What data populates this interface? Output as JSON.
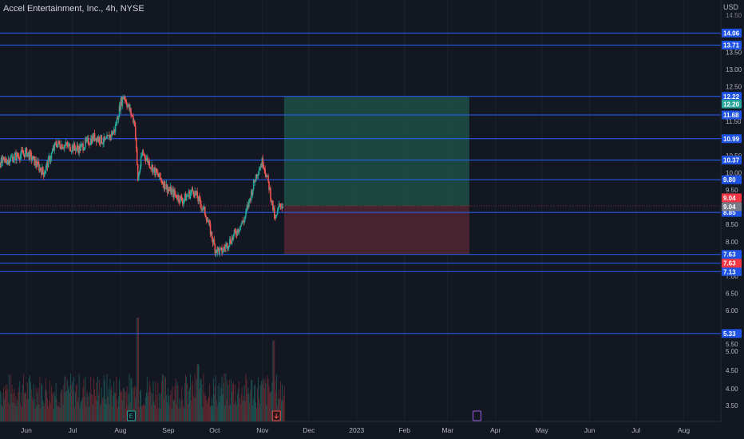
{
  "header": {
    "symbol_title": "Accel Entertainment, Inc., 4h, NYSE",
    "currency": "USD"
  },
  "colors": {
    "background": "#131722",
    "up_candle": "#26a69a",
    "down_candle": "#ef5350",
    "level_line": "#2962ff",
    "level_label_bg": "#1e53e5",
    "profit_zone": "#1c4a43",
    "loss_zone": "#4a2430",
    "price_tag_teal": "#26a69a",
    "price_tag_red": "#f23645",
    "price_tag_gray": "#787b86"
  },
  "chart_data": {
    "type": "candlestick",
    "title": "Accel Entertainment, Inc., 4h, NYSE",
    "ylabel": "USD",
    "ylim": [
      3.2,
      14.6
    ],
    "y_ticks": [
      "14.50",
      "13.50",
      "13.00",
      "12.50",
      "12.00",
      "11.50",
      "11.00",
      "10.50",
      "10.00",
      "9.50",
      "9.00",
      "8.50",
      "8.00",
      "7.50",
      "7.00",
      "6.50",
      "6.00",
      "5.50",
      "5.00",
      "4.50",
      "4.00",
      "3.50"
    ],
    "x_ticks": [
      "Jun",
      "Jul",
      "Aug",
      "Sep",
      "Oct",
      "Nov",
      "Dec",
      "2023",
      "Feb",
      "Mar",
      "Apr",
      "May",
      "Jun",
      "Jul",
      "Aug"
    ],
    "x_tick_dates": [
      "2022-06-01",
      "2022-07-01",
      "2022-08-01",
      "2022-09-01",
      "2022-10-01",
      "2022-11-01",
      "2022-12-01",
      "2023-01-01",
      "2023-02-01",
      "2023-03-01",
      "2023-04-01",
      "2023-05-01",
      "2023-06-01",
      "2023-07-01",
      "2023-08-01"
    ],
    "horizontal_levels": [
      "14.06",
      "13.71",
      "12.22",
      "11.68",
      "10.99",
      "10.37",
      "9.80",
      "8.85",
      "7.63",
      "7.37",
      "7.13",
      "5.33"
    ],
    "current_price_tags": [
      "12.20",
      "9.04",
      "9.04",
      "7.63"
    ],
    "last_price": 9.04,
    "position_tool": {
      "entry": 9.04,
      "target": 12.22,
      "stop": 7.63,
      "start_date": "2022-11-15",
      "end_date": "2023-03-15"
    },
    "markers": [
      "E",
      "E"
    ],
    "price_path": [
      {
        "date": "2022-05-15",
        "price": 10.3
      },
      {
        "date": "2022-06-01",
        "price": 10.6
      },
      {
        "date": "2022-06-12",
        "price": 10.0
      },
      {
        "date": "2022-06-20",
        "price": 10.85
      },
      {
        "date": "2022-07-05",
        "price": 10.7
      },
      {
        "date": "2022-07-15",
        "price": 11.05
      },
      {
        "date": "2022-07-22",
        "price": 10.9
      },
      {
        "date": "2022-07-28",
        "price": 11.25
      },
      {
        "date": "2022-08-01",
        "price": 12.05
      },
      {
        "date": "2022-08-03",
        "price": 12.25
      },
      {
        "date": "2022-08-06",
        "price": 11.9
      },
      {
        "date": "2022-08-10",
        "price": 11.45
      },
      {
        "date": "2022-08-12",
        "price": 9.8
      },
      {
        "date": "2022-08-15",
        "price": 10.6
      },
      {
        "date": "2022-08-22",
        "price": 10.1
      },
      {
        "date": "2022-09-01",
        "price": 9.5
      },
      {
        "date": "2022-09-10",
        "price": 9.2
      },
      {
        "date": "2022-09-17",
        "price": 9.5
      },
      {
        "date": "2022-09-25",
        "price": 8.8
      },
      {
        "date": "2022-10-01",
        "price": 7.8
      },
      {
        "date": "2022-10-05",
        "price": 7.7
      },
      {
        "date": "2022-10-12",
        "price": 8.1
      },
      {
        "date": "2022-10-20",
        "price": 8.65
      },
      {
        "date": "2022-10-28",
        "price": 10.0
      },
      {
        "date": "2022-11-01",
        "price": 10.35
      },
      {
        "date": "2022-11-05",
        "price": 9.6
      },
      {
        "date": "2022-11-09",
        "price": 8.6
      },
      {
        "date": "2022-11-12",
        "price": 9.1
      },
      {
        "date": "2022-11-14",
        "price": 9.04
      }
    ],
    "volume": {
      "note": "volume histogram at chart bottom, scale not printed",
      "relative_peaks": [
        {
          "date": "2022-08-12",
          "relative": 1.0
        },
        {
          "date": "2022-11-08",
          "relative": 0.78
        },
        {
          "date": "2022-09-20",
          "relative": 0.55
        }
      ]
    }
  }
}
